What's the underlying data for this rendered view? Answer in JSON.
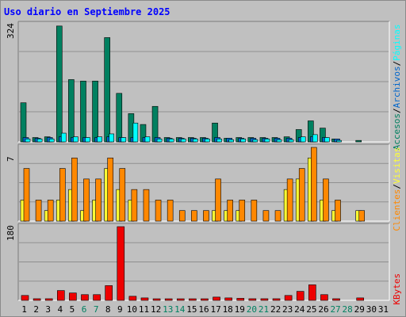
{
  "title": "Uso diario en Septiembre 2025",
  "colors": {
    "title": "#0000ff",
    "background": "#c0c0c0",
    "grid": "#a6a6a6",
    "pages": "#00ffff",
    "visits": "#0066cc",
    "hits": "#008060",
    "clients": "#ffff33",
    "visitas_orange": "#ff8800",
    "kbytes": "#ee0000",
    "weekend": "#008060",
    "weekday": "#000000"
  },
  "side_labels": {
    "top": [
      "Accesos",
      "/",
      "Archivos",
      "/",
      "Páginas"
    ],
    "middle": [
      "Clientes",
      "/",
      "Visitas"
    ],
    "bottom": [
      "KBytes"
    ]
  },
  "chart_data": [
    {
      "type": "bar",
      "name": "top",
      "y_max_label": "324",
      "ylim": [
        0,
        324
      ],
      "categories": [
        "1",
        "2",
        "3",
        "4",
        "5",
        "6",
        "7",
        "8",
        "9",
        "10",
        "11",
        "12",
        "13",
        "14",
        "15",
        "16",
        "17",
        "18",
        "19",
        "20",
        "21",
        "22",
        "23",
        "24",
        "25",
        "26",
        "27",
        "28",
        "29",
        "30",
        "31"
      ],
      "series": [
        {
          "key": "accesos",
          "values": [
            108,
            12,
            14,
            320,
            172,
            168,
            168,
            288,
            134,
            78,
            48,
            98,
            12,
            12,
            12,
            12,
            52,
            10,
            12,
            12,
            12,
            12,
            14,
            34,
            58,
            38,
            8,
            0,
            4,
            0,
            0
          ]
        },
        {
          "key": "archivos",
          "values": [
            12,
            10,
            12,
            14,
            12,
            12,
            12,
            14,
            12,
            12,
            12,
            12,
            10,
            10,
            10,
            10,
            12,
            10,
            10,
            10,
            10,
            10,
            10,
            12,
            14,
            12,
            8,
            0,
            0,
            0,
            0
          ]
        },
        {
          "key": "paginas",
          "values": [
            8,
            8,
            8,
            24,
            14,
            12,
            14,
            22,
            12,
            52,
            14,
            8,
            8,
            8,
            8,
            8,
            8,
            6,
            8,
            6,
            8,
            6,
            6,
            14,
            20,
            12,
            4,
            0,
            0,
            0,
            0
          ]
        }
      ]
    },
    {
      "type": "bar",
      "name": "middle",
      "y_max_label": "7",
      "ylim": [
        0,
        7
      ],
      "categories": [
        "1",
        "2",
        "3",
        "4",
        "5",
        "6",
        "7",
        "8",
        "9",
        "10",
        "11",
        "12",
        "13",
        "14",
        "15",
        "16",
        "17",
        "18",
        "19",
        "20",
        "21",
        "22",
        "23",
        "24",
        "25",
        "26",
        "27",
        "28",
        "29",
        "30",
        "31"
      ],
      "series": [
        {
          "key": "clientes",
          "values": [
            2,
            0,
            1,
            2,
            3,
            1,
            2,
            5,
            3,
            2,
            0,
            0,
            0,
            0,
            0,
            0,
            1,
            1,
            1,
            0,
            0,
            0,
            3,
            4,
            6,
            2,
            1,
            0,
            1,
            0,
            0
          ]
        },
        {
          "key": "visitas",
          "values": [
            5,
            2,
            2,
            5,
            6,
            4,
            4,
            6,
            5,
            3,
            3,
            2,
            2,
            1,
            1,
            1,
            4,
            2,
            2,
            2,
            1,
            1,
            4,
            5,
            7,
            4,
            2,
            0,
            1,
            0,
            0
          ]
        }
      ]
    },
    {
      "type": "bar",
      "name": "bottom",
      "y_max_label": "180",
      "ylim": [
        0,
        180
      ],
      "categories": [
        "1",
        "2",
        "3",
        "4",
        "5",
        "6",
        "7",
        "8",
        "9",
        "10",
        "11",
        "12",
        "13",
        "14",
        "15",
        "16",
        "17",
        "18",
        "19",
        "20",
        "21",
        "22",
        "23",
        "24",
        "25",
        "26",
        "27",
        "28",
        "29",
        "30",
        "31"
      ],
      "series": [
        {
          "key": "kbytes",
          "values": [
            12,
            4,
            4,
            24,
            18,
            14,
            14,
            36,
            180,
            10,
            6,
            3,
            3,
            3,
            3,
            3,
            8,
            6,
            5,
            4,
            4,
            4,
            12,
            22,
            38,
            14,
            4,
            0,
            6,
            0,
            0
          ]
        }
      ]
    }
  ],
  "x_axis": {
    "days": [
      "1",
      "2",
      "3",
      "4",
      "5",
      "6",
      "7",
      "8",
      "9",
      "10",
      "11",
      "12",
      "13",
      "14",
      "15",
      "16",
      "17",
      "18",
      "19",
      "20",
      "21",
      "22",
      "23",
      "24",
      "25",
      "26",
      "27",
      "28",
      "29",
      "30",
      "31"
    ],
    "weekend": [
      "6",
      "7",
      "13",
      "14",
      "20",
      "21",
      "27",
      "28"
    ]
  }
}
